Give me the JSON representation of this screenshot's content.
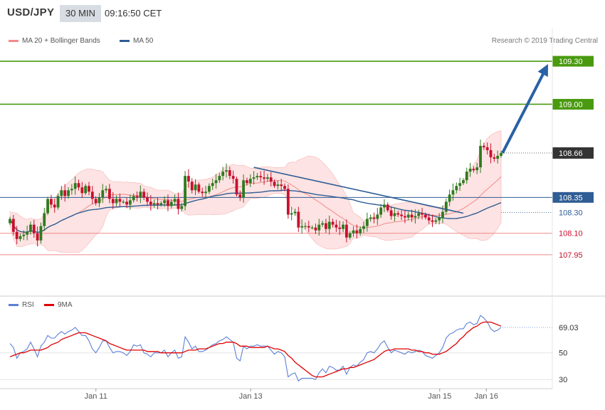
{
  "header": {
    "symbol": "USD/JPY",
    "timeframe": "30 MIN",
    "time": "09:16:50 CET"
  },
  "legend_main": [
    {
      "label": "MA 20 + Bollinger Bands",
      "color": "#f28a8a"
    },
    {
      "label": "MA 50",
      "color": "#2f5d95"
    }
  ],
  "legend_rsi": [
    {
      "label": "RSI",
      "color": "#5b7fd6"
    },
    {
      "label": "9MA",
      "color": "#e00000"
    }
  ],
  "copyright": "Research © 2019 Trading Central",
  "colors": {
    "bull": "#2f7a1f",
    "bear": "#c8102e",
    "target": "#4a9a10",
    "support": "#ef8a8a",
    "ma50": "#2f5d95",
    "bands": "#fddede",
    "arrow": "#2a60a5",
    "current": "#333333"
  },
  "chart_data": [
    {
      "type": "candlestick",
      "ylim": [
        107.885,
        109.34
      ],
      "x_ticks": [
        "Jan 11",
        "Jan 13",
        "Jan 15",
        "Jan 16"
      ],
      "levels": [
        {
          "label": "109.30",
          "value": 109.3,
          "kind": "target"
        },
        {
          "label": "109.00",
          "value": 109.0,
          "kind": "target"
        },
        {
          "label": "108.35",
          "value": 108.35,
          "kind": "pivot"
        },
        {
          "label": "108.10",
          "value": 108.1,
          "kind": "support"
        },
        {
          "label": "107.95",
          "value": 107.95,
          "kind": "support"
        }
      ],
      "current_price": {
        "label": "108.66",
        "value": 108.66
      },
      "ma50_last": {
        "label": "108.30",
        "value": 108.3
      },
      "close": [
        108.2,
        108.11,
        108.06,
        108.08,
        108.09,
        108.11,
        108.16,
        108.1,
        108.05,
        108.15,
        108.24,
        108.34,
        108.3,
        108.28,
        108.36,
        108.4,
        108.36,
        108.4,
        108.41,
        108.45,
        108.42,
        108.38,
        108.43,
        108.39,
        108.34,
        108.31,
        108.35,
        108.4,
        108.41,
        108.34,
        108.31,
        108.34,
        108.32,
        108.32,
        108.3,
        108.33,
        108.36,
        108.35,
        108.39,
        108.35,
        108.32,
        108.3,
        108.31,
        108.3,
        108.31,
        108.33,
        108.29,
        108.32,
        108.34,
        108.27,
        108.29,
        108.5,
        108.46,
        108.4,
        108.44,
        108.39,
        108.38,
        108.39,
        108.43,
        108.45,
        108.47,
        108.5,
        108.53,
        108.54,
        108.5,
        108.48,
        108.37,
        108.35,
        108.47,
        108.45,
        108.48,
        108.49,
        108.5,
        108.49,
        108.48,
        108.49,
        108.46,
        108.43,
        108.44,
        108.43,
        108.41,
        108.23,
        108.24,
        108.25,
        108.14,
        108.15,
        108.15,
        108.14,
        108.14,
        108.12,
        108.16,
        108.17,
        108.13,
        108.18,
        108.16,
        108.14,
        108.13,
        108.16,
        108.07,
        108.1,
        108.12,
        108.1,
        108.13,
        108.15,
        108.2,
        108.21,
        108.2,
        108.23,
        108.28,
        108.3,
        108.26,
        108.22,
        108.24,
        108.23,
        108.22,
        108.21,
        108.23,
        108.21,
        108.22,
        108.24,
        108.23,
        108.21,
        108.19,
        108.18,
        108.19,
        108.21,
        108.25,
        108.32,
        108.37,
        108.4,
        108.43,
        108.45,
        108.47,
        108.53,
        108.55,
        108.54,
        108.56,
        108.71,
        108.7,
        108.68,
        108.63,
        108.62,
        108.64,
        108.66
      ]
    },
    {
      "type": "line",
      "series": [
        {
          "name": "RSI",
          "values": [
            57,
            54,
            46,
            50,
            51,
            53,
            58,
            53,
            47,
            55,
            58,
            63,
            61,
            61,
            64,
            66,
            64,
            66,
            67,
            69,
            66,
            63,
            63,
            59,
            53,
            50,
            54,
            59,
            59,
            54,
            50,
            51,
            51,
            50,
            48,
            51,
            56,
            55,
            56,
            50,
            49,
            47,
            50,
            50,
            50,
            52,
            47,
            50,
            52,
            46,
            47,
            62,
            58,
            53,
            55,
            51,
            51,
            52,
            54,
            56,
            57,
            59,
            60,
            62,
            60,
            58,
            46,
            44,
            55,
            53,
            55,
            55,
            56,
            55,
            55,
            55,
            52,
            49,
            51,
            50,
            47,
            32,
            34,
            35,
            29,
            31,
            31,
            31,
            31,
            30,
            35,
            38,
            35,
            40,
            39,
            37,
            37,
            40,
            34,
            39,
            41,
            40,
            43,
            45,
            50,
            51,
            50,
            53,
            57,
            59,
            54,
            50,
            52,
            51,
            50,
            49,
            51,
            50,
            51,
            52,
            51,
            48,
            47,
            46,
            48,
            50,
            54,
            61,
            64,
            65,
            67,
            68,
            68,
            72,
            73,
            71,
            72,
            78,
            76,
            73,
            68,
            66,
            67,
            69
          ]
        },
        {
          "name": "9MA",
          "values": [
            47,
            48,
            49,
            50,
            50,
            51,
            52,
            52,
            52,
            52,
            53,
            54,
            56,
            57,
            58,
            60,
            61,
            62,
            63,
            64,
            65,
            65,
            65,
            64,
            63,
            62,
            61,
            60,
            59,
            57,
            56,
            55,
            54,
            53,
            52,
            52,
            52,
            52,
            52,
            52,
            51,
            51,
            51,
            51,
            50,
            50,
            50,
            50,
            50,
            50,
            50,
            51,
            52,
            52,
            52,
            53,
            53,
            53,
            54,
            55,
            56,
            57,
            57,
            58,
            58,
            58,
            57,
            55,
            55,
            55,
            54,
            54,
            54,
            54,
            54,
            55,
            54,
            53,
            53,
            52,
            51,
            48,
            46,
            43,
            41,
            39,
            37,
            35,
            33,
            32,
            32,
            32,
            33,
            34,
            35,
            36,
            37,
            38,
            38,
            39,
            39,
            40,
            41,
            42,
            43,
            44,
            45,
            47,
            49,
            51,
            52,
            52,
            53,
            53,
            53,
            53,
            53,
            52,
            52,
            51,
            51,
            50,
            50,
            49,
            49,
            49,
            50,
            51,
            53,
            55,
            57,
            60,
            62,
            65,
            67,
            69,
            70,
            72,
            73,
            73,
            73,
            72,
            71,
            70
          ]
        }
      ],
      "ylim": [
        20,
        85
      ],
      "y_ticks": [
        30,
        50
      ],
      "current": {
        "label": "69.03",
        "value": 69.03
      }
    }
  ]
}
